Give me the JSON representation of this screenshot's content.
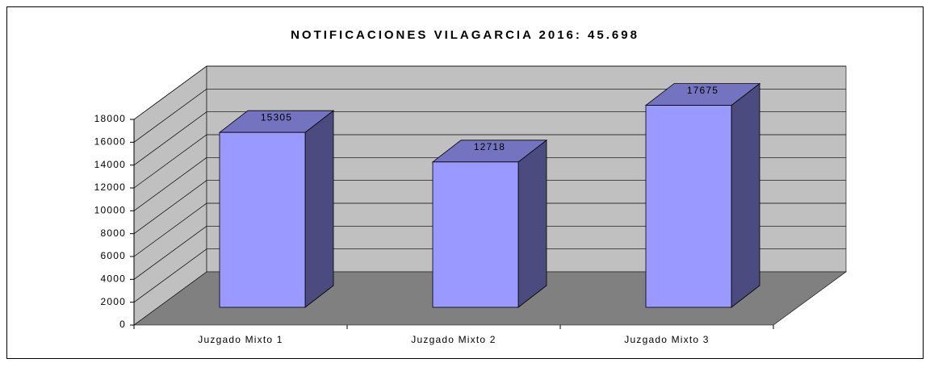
{
  "chart_data": {
    "type": "bar3d",
    "title": "NOTIFICACIONES VILAGARCIA 2016: 45.698",
    "categories": [
      "Juzgado Mixto 1",
      "Juzgado Mixto 2",
      "Juzgado Mixto 3"
    ],
    "values": [
      15305,
      12718,
      17675
    ],
    "color": "#9999ff",
    "ylim": [
      0,
      18000
    ],
    "yticks": [
      0,
      2000,
      4000,
      6000,
      8000,
      10000,
      12000,
      14000,
      16000,
      18000
    ],
    "grid": true
  }
}
